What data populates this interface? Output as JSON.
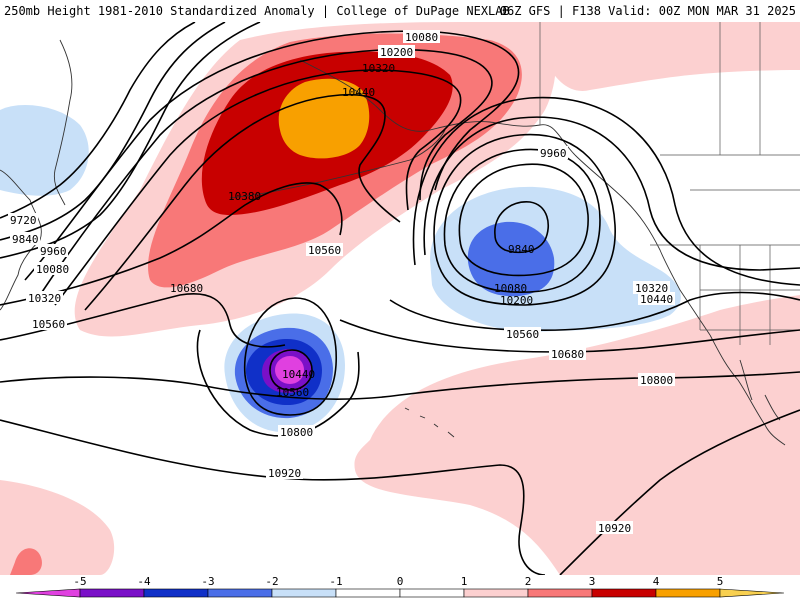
{
  "header": {
    "title_left": "250mb Height 1981-2010 Standardized Anomaly | College of DuPage NEXLAB",
    "title_right": "06Z GFS | F138 Valid: 00Z MON MAR 31 2025"
  },
  "colors": {
    "neg5": "#e040e0",
    "neg4": "#7a10c8",
    "neg3": "#1030c8",
    "neg2": "#4a6ee8",
    "neg1": "#c8e0f8",
    "pos1": "#fcd0d0",
    "pos2": "#f87878",
    "pos3": "#c80000",
    "pos4": "#f8a000",
    "pos5": "#f8d050",
    "contour": "#000000"
  },
  "colorbar": {
    "ticks": [
      "-5",
      "-4",
      "-3",
      "-2",
      "-1",
      "0",
      "1",
      "2",
      "3",
      "4",
      "5"
    ]
  },
  "contour_labels": {
    "l10080_top": "10080",
    "l10200_top": "10200",
    "l10320_top": "10320",
    "l10440_top": "10440",
    "l10380": "10380",
    "l10560_mid": "10560",
    "l10680_left": "10680",
    "l9720": "9720",
    "l9840_left": "9840",
    "l9960_left": "9960",
    "l10080_left": "10080",
    "l10320_left": "10320",
    "l10560_left": "10560",
    "l9960_right": "9960",
    "l9840_low": "9840",
    "l10080_low": "10080",
    "l10200_low": "10200",
    "l10320_right": "10320",
    "l10440_right": "10440",
    "l10560_right": "10560",
    "l10680_right": "10680",
    "l10800_right": "10800",
    "l10440_low2": "10440",
    "l10560_low2": "10560",
    "l10800_low2": "10800",
    "l10920_mid": "10920",
    "l10920_right": "10920"
  }
}
